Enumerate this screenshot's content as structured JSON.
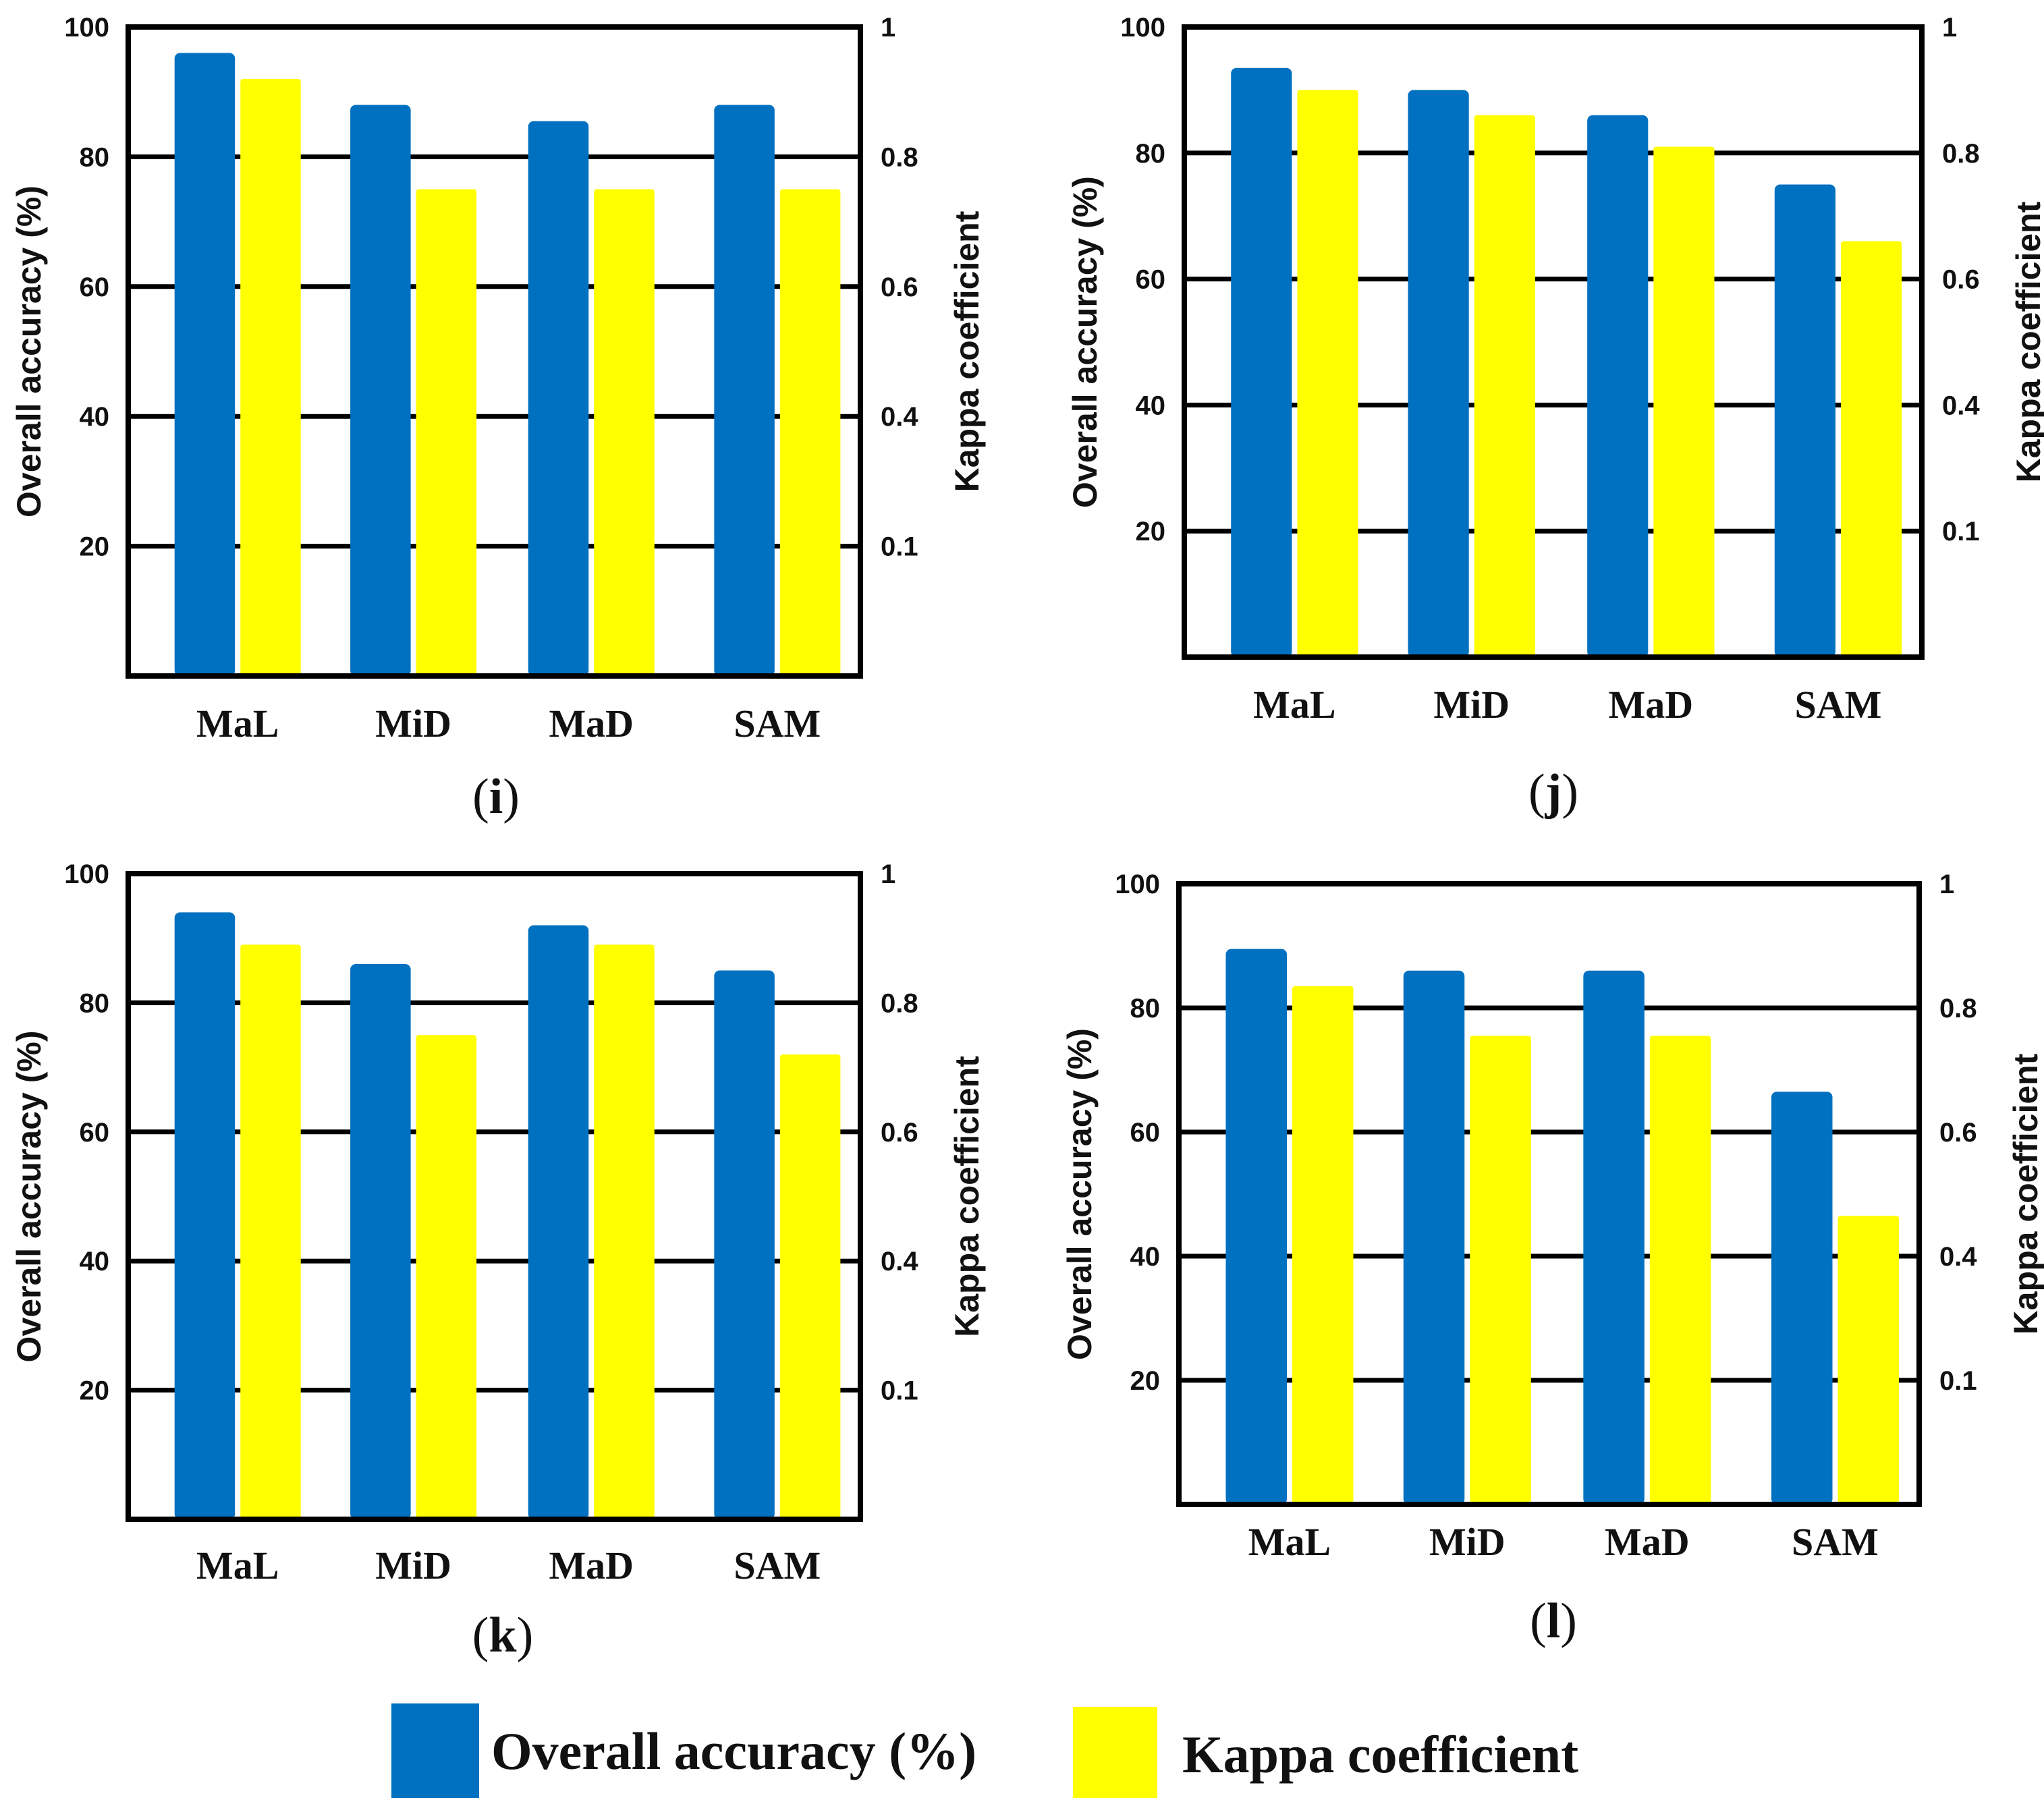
{
  "figure": {
    "series_colors": {
      "accuracy": "#0070c0",
      "kappa": "#ffff00"
    },
    "legend": {
      "items": [
        {
          "label": "Overall accuracy (%)",
          "color": "#0070c0"
        },
        {
          "label": "Kappa coefficient",
          "color": "#ffff00"
        }
      ]
    }
  },
  "chart_data": [
    {
      "type": "bar",
      "panel_label": "i",
      "categories": [
        "MaL",
        "MiD",
        "MaD",
        "SAM"
      ],
      "series": [
        {
          "name": "Overall accuracy (%)",
          "axis": "left",
          "values": [
            96,
            88,
            85.5,
            88
          ]
        },
        {
          "name": "Kappa coefficient",
          "axis": "right",
          "values": [
            0.92,
            0.75,
            0.75,
            0.75
          ]
        }
      ],
      "ylabel": "Overall accuracy (%)",
      "ylabel_right": "Kappa coefficient",
      "ylim": [
        0,
        100
      ],
      "yticks": [
        "100",
        "80",
        "60",
        "40",
        "20"
      ],
      "yticks_right": [
        "1",
        "0.8",
        "0.6",
        "0.4",
        "0.1"
      ],
      "grid": true
    },
    {
      "type": "bar",
      "panel_label": "j",
      "categories": [
        "MaL",
        "MiD",
        "MaD",
        "SAM"
      ],
      "series": [
        {
          "name": "Overall accuracy (%)",
          "axis": "left",
          "values": [
            93.5,
            90,
            86,
            75
          ]
        },
        {
          "name": "Kappa coefficient",
          "axis": "right",
          "values": [
            0.9,
            0.86,
            0.81,
            0.66
          ]
        }
      ],
      "ylabel": "Overall accuracy (%)",
      "ylabel_right": "Kappa coefficient",
      "ylim": [
        0,
        100
      ],
      "yticks": [
        "100",
        "80",
        "60",
        "40",
        "20"
      ],
      "yticks_right": [
        "1",
        "0.8",
        "0.6",
        "0.4",
        "0.1"
      ],
      "grid": true
    },
    {
      "type": "bar",
      "panel_label": "k",
      "categories": [
        "MaL",
        "MiD",
        "MaD",
        "SAM"
      ],
      "series": [
        {
          "name": "Overall accuracy (%)",
          "axis": "left",
          "values": [
            94,
            86,
            92,
            85
          ]
        },
        {
          "name": "Kappa coefficient",
          "axis": "right",
          "values": [
            0.89,
            0.75,
            0.89,
            0.72
          ]
        }
      ],
      "ylabel": "Overall accuracy (%)",
      "ylabel_right": "Kappa coefficient",
      "ylim": [
        0,
        100
      ],
      "yticks": [
        "100",
        "80",
        "60",
        "40",
        "20"
      ],
      "yticks_right": [
        "1",
        "0.8",
        "0.6",
        "0.4",
        "0.1"
      ],
      "grid": true
    },
    {
      "type": "bar",
      "panel_label": "l",
      "categories": [
        "MaL",
        "MiD",
        "MaD",
        "SAM"
      ],
      "series": [
        {
          "name": "Overall accuracy (%)",
          "axis": "left",
          "values": [
            89.5,
            86,
            86,
            66.5
          ]
        },
        {
          "name": "Kappa coefficient",
          "axis": "right",
          "values": [
            0.835,
            0.755,
            0.755,
            0.465
          ]
        }
      ],
      "ylabel": "Overall accuracy (%)",
      "ylabel_right": "Kappa coefficient",
      "ylim": [
        0,
        100
      ],
      "yticks": [
        "100",
        "80",
        "60",
        "40",
        "20"
      ],
      "yticks_right": [
        "1",
        "0.8",
        "0.6",
        "0.4",
        "0.1"
      ],
      "grid": true
    }
  ]
}
